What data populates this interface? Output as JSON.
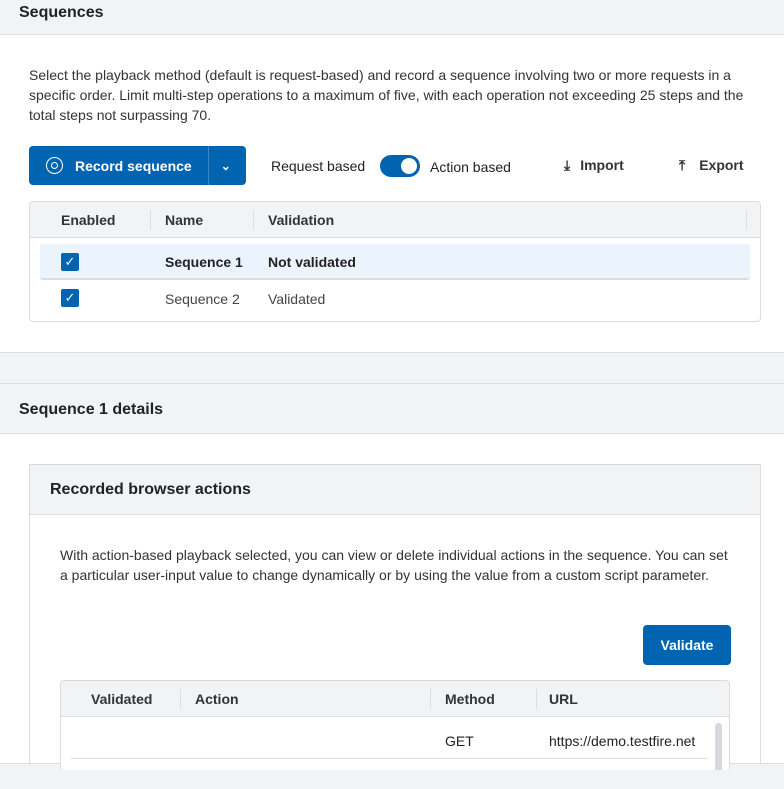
{
  "sequences": {
    "title": "Sequences",
    "description": "Select the playback method (default is request-based) and record a sequence involving two or more requests in a specific order. Limit multi-step operations to a maximum of five, with each operation not exceeding 25 steps and the total steps not surpassing 70.",
    "record_label": "Record sequence",
    "toggle_left": "Request based",
    "toggle_right": "Action based",
    "toggle_on": true,
    "import_label": "Import",
    "export_label": "Export",
    "columns": [
      "Enabled",
      "Name",
      "Validation"
    ],
    "rows": [
      {
        "enabled": true,
        "name": "Sequence 1",
        "validation": "Not validated",
        "selected": true
      },
      {
        "enabled": true,
        "name": "Sequence 2",
        "validation": "Validated",
        "selected": false
      }
    ]
  },
  "details": {
    "title": "Sequence 1 details",
    "card_title": "Recorded browser actions",
    "description": "With action-based playback selected, you can view or delete individual actions in the sequence. You can set a particular user-input value to change dynamically or by using the value from a custom script parameter.",
    "validate_label": "Validate",
    "columns": [
      "Validated",
      "Action",
      "Method",
      "URL"
    ],
    "rows": [
      {
        "validated": "",
        "action": "",
        "method": "GET",
        "url": "https://demo.testfire.net"
      }
    ]
  },
  "colors": {
    "accent": "#0064b0",
    "selected_row": "#ebf3fd"
  }
}
